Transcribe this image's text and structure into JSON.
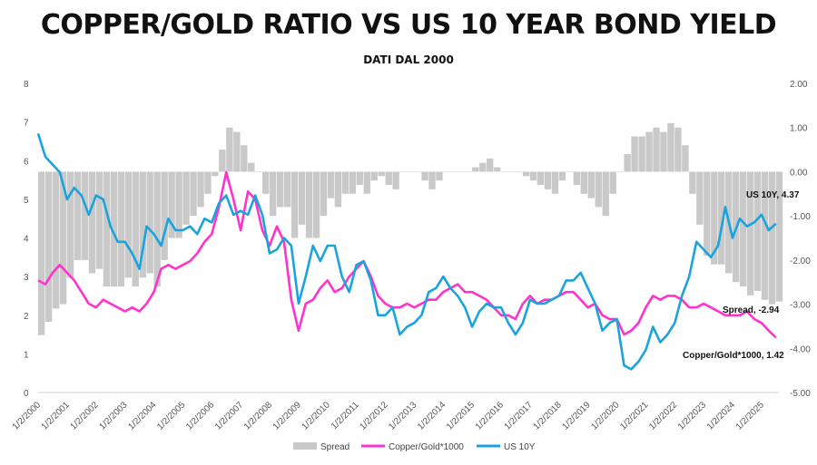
{
  "chart_data": {
    "type": "line",
    "title": "COPPER/GOLD RATIO VS US 10 YEAR BOND YIELD",
    "subtitle": "DATI DAL 2000",
    "x_tick_labels": [
      "1/2/2000",
      "1/2/2001",
      "1/2/2002",
      "1/2/2003",
      "1/2/2004",
      "1/2/2005",
      "1/2/2006",
      "1/2/2007",
      "1/2/2008",
      "1/2/2009",
      "1/2/2010",
      "1/2/2011",
      "1/2/2012",
      "1/2/2013",
      "1/2/2014",
      "1/2/2015",
      "1/2/2016",
      "1/2/2017",
      "1/2/2018",
      "1/2/2019",
      "1/2/2020",
      "1/2/2021",
      "1/2/2022",
      "1/2/2023",
      "1/2/2024",
      "1/2/2025"
    ],
    "y_left": {
      "min": 0,
      "max": 8,
      "ticks": [
        "0",
        "1",
        "2",
        "3",
        "4",
        "5",
        "6",
        "7",
        "8"
      ]
    },
    "y_right": {
      "min": -5,
      "max": 2,
      "ticks": [
        "2.00",
        "1.00",
        "0.00",
        "-1.00",
        "-2.00",
        "-3.00",
        "-4.00",
        "-5.00"
      ]
    },
    "grid": false,
    "legend_position": "bottom",
    "colors": {
      "spread": "#c9c9c9",
      "copper_gold": "#ff33cc",
      "us10y": "#1aa3dc"
    },
    "series": [
      {
        "name": "Spread",
        "axis": "right",
        "style": "bar",
        "x": [
          2000.0,
          2000.25,
          2000.5,
          2000.75,
          2001.0,
          2001.25,
          2001.5,
          2001.75,
          2002.0,
          2002.25,
          2002.5,
          2002.75,
          2003.0,
          2003.25,
          2003.5,
          2003.75,
          2004.0,
          2004.25,
          2004.5,
          2004.75,
          2005.0,
          2005.25,
          2005.5,
          2005.75,
          2006.0,
          2006.25,
          2006.5,
          2006.75,
          2007.0,
          2007.25,
          2007.5,
          2007.75,
          2008.0,
          2008.25,
          2008.5,
          2008.75,
          2009.0,
          2009.25,
          2009.5,
          2009.75,
          2010.0,
          2010.25,
          2010.5,
          2010.75,
          2011.0,
          2011.25,
          2011.5,
          2011.75,
          2012.0,
          2012.25,
          2012.5,
          2012.75,
          2013.0,
          2013.25,
          2013.5,
          2013.75,
          2014.0,
          2014.25,
          2014.5,
          2014.75,
          2015.0,
          2015.25,
          2015.5,
          2015.75,
          2016.0,
          2016.25,
          2016.5,
          2016.75,
          2017.0,
          2017.25,
          2017.5,
          2017.75,
          2018.0,
          2018.25,
          2018.5,
          2018.75,
          2019.0,
          2019.25,
          2019.5,
          2019.75,
          2020.0,
          2020.25,
          2020.5,
          2020.75,
          2021.0,
          2021.25,
          2021.5,
          2021.75,
          2022.0,
          2022.25,
          2022.5,
          2022.75,
          2023.0,
          2023.25,
          2023.5,
          2023.75,
          2024.0,
          2024.25,
          2024.5,
          2024.75,
          2025.0,
          2025.25,
          2025.5
        ],
        "values": [
          -3.7,
          -3.4,
          -3.1,
          -3.0,
          -2.4,
          -2.0,
          -2.0,
          -2.3,
          -2.2,
          -2.6,
          -2.6,
          -2.6,
          -2.4,
          -2.6,
          -2.4,
          -2.3,
          -2.6,
          -2.0,
          -1.5,
          -1.5,
          -1.2,
          -1.0,
          -0.8,
          -0.5,
          -0.1,
          0.5,
          1.0,
          0.9,
          0.6,
          0.2,
          0.0,
          -0.5,
          -1.0,
          -0.8,
          -0.8,
          -1.5,
          -1.2,
          -1.5,
          -1.5,
          -1.0,
          -0.6,
          -0.8,
          -0.5,
          -0.5,
          -0.3,
          -0.5,
          -0.2,
          -0.1,
          -0.3,
          -0.4,
          0.0,
          0.0,
          0.0,
          -0.2,
          -0.4,
          -0.2,
          0.0,
          0.0,
          0.0,
          0.0,
          0.1,
          0.2,
          0.3,
          0.1,
          0.0,
          0.0,
          0.0,
          -0.1,
          -0.2,
          -0.3,
          -0.4,
          -0.5,
          -0.2,
          0.0,
          -0.3,
          -0.5,
          -0.6,
          -0.8,
          -1.0,
          -0.5,
          0.0,
          0.4,
          0.8,
          0.8,
          0.9,
          1.0,
          0.9,
          1.1,
          1.0,
          0.6,
          -0.5,
          -1.2,
          -1.9,
          -2.1,
          -2.1,
          -2.3,
          -2.5,
          -2.6,
          -2.8,
          -2.7,
          -2.9,
          -3.0,
          -2.94
        ]
      },
      {
        "name": "Copper/Gold*1000",
        "axis": "left",
        "x": [
          2000.0,
          2000.25,
          2000.5,
          2000.75,
          2001.0,
          2001.25,
          2001.5,
          2001.75,
          2002.0,
          2002.25,
          2002.5,
          2002.75,
          2003.0,
          2003.25,
          2003.5,
          2003.75,
          2004.0,
          2004.25,
          2004.5,
          2004.75,
          2005.0,
          2005.25,
          2005.5,
          2005.75,
          2006.0,
          2006.25,
          2006.5,
          2006.75,
          2007.0,
          2007.25,
          2007.5,
          2007.75,
          2008.0,
          2008.25,
          2008.5,
          2008.75,
          2009.0,
          2009.25,
          2009.5,
          2009.75,
          2010.0,
          2010.25,
          2010.5,
          2010.75,
          2011.0,
          2011.25,
          2011.5,
          2011.75,
          2012.0,
          2012.25,
          2012.5,
          2012.75,
          2013.0,
          2013.25,
          2013.5,
          2013.75,
          2014.0,
          2014.25,
          2014.5,
          2014.75,
          2015.0,
          2015.25,
          2015.5,
          2015.75,
          2016.0,
          2016.25,
          2016.5,
          2016.75,
          2017.0,
          2017.25,
          2017.5,
          2017.75,
          2018.0,
          2018.25,
          2018.5,
          2018.75,
          2019.0,
          2019.25,
          2019.5,
          2019.75,
          2020.0,
          2020.25,
          2020.5,
          2020.75,
          2021.0,
          2021.25,
          2021.5,
          2021.75,
          2022.0,
          2022.25,
          2022.5,
          2022.75,
          2023.0,
          2023.25,
          2023.5,
          2023.75,
          2024.0,
          2024.25,
          2024.5,
          2024.75,
          2025.0,
          2025.25,
          2025.5
        ],
        "values": [
          2.9,
          2.8,
          3.1,
          3.3,
          3.1,
          2.9,
          2.6,
          2.3,
          2.2,
          2.4,
          2.3,
          2.2,
          2.1,
          2.2,
          2.1,
          2.3,
          2.6,
          3.2,
          3.3,
          3.2,
          3.3,
          3.4,
          3.6,
          3.9,
          4.1,
          4.8,
          5.7,
          5.0,
          4.2,
          5.2,
          5.0,
          4.2,
          3.8,
          4.3,
          3.9,
          2.4,
          1.6,
          2.3,
          2.4,
          2.7,
          2.9,
          2.6,
          2.7,
          3.0,
          3.2,
          3.4,
          3.0,
          2.5,
          2.3,
          2.2,
          2.2,
          2.3,
          2.2,
          2.3,
          2.4,
          2.4,
          2.6,
          2.7,
          2.8,
          2.6,
          2.6,
          2.5,
          2.4,
          2.2,
          2.0,
          2.0,
          1.9,
          2.3,
          2.5,
          2.3,
          2.4,
          2.4,
          2.5,
          2.6,
          2.6,
          2.4,
          2.2,
          2.3,
          2.0,
          1.9,
          1.9,
          1.5,
          1.6,
          1.8,
          2.2,
          2.5,
          2.4,
          2.5,
          2.5,
          2.4,
          2.2,
          2.2,
          2.3,
          2.2,
          2.1,
          2.0,
          2.0,
          2.0,
          2.1,
          1.9,
          1.8,
          1.6,
          1.42
        ]
      },
      {
        "name": "US 10Y",
        "axis": "left",
        "x": [
          2000.0,
          2000.25,
          2000.5,
          2000.75,
          2001.0,
          2001.25,
          2001.5,
          2001.75,
          2002.0,
          2002.25,
          2002.5,
          2002.75,
          2003.0,
          2003.25,
          2003.5,
          2003.75,
          2004.0,
          2004.25,
          2004.5,
          2004.75,
          2005.0,
          2005.25,
          2005.5,
          2005.75,
          2006.0,
          2006.25,
          2006.5,
          2006.75,
          2007.0,
          2007.25,
          2007.5,
          2007.75,
          2008.0,
          2008.25,
          2008.5,
          2008.75,
          2009.0,
          2009.25,
          2009.5,
          2009.75,
          2010.0,
          2010.25,
          2010.5,
          2010.75,
          2011.0,
          2011.25,
          2011.5,
          2011.75,
          2012.0,
          2012.25,
          2012.5,
          2012.75,
          2013.0,
          2013.25,
          2013.5,
          2013.75,
          2014.0,
          2014.25,
          2014.5,
          2014.75,
          2015.0,
          2015.25,
          2015.5,
          2015.75,
          2016.0,
          2016.25,
          2016.5,
          2016.75,
          2017.0,
          2017.25,
          2017.5,
          2017.75,
          2018.0,
          2018.25,
          2018.5,
          2018.75,
          2019.0,
          2019.25,
          2019.5,
          2019.75,
          2020.0,
          2020.25,
          2020.5,
          2020.75,
          2021.0,
          2021.25,
          2021.5,
          2021.75,
          2022.0,
          2022.25,
          2022.5,
          2022.75,
          2023.0,
          2023.25,
          2023.5,
          2023.75,
          2024.0,
          2024.25,
          2024.5,
          2024.75,
          2025.0,
          2025.25,
          2025.5
        ],
        "values": [
          6.7,
          6.1,
          5.9,
          5.7,
          5.0,
          5.3,
          5.1,
          4.6,
          5.1,
          5.0,
          4.3,
          3.9,
          3.9,
          3.6,
          3.2,
          4.3,
          4.1,
          3.8,
          4.5,
          4.2,
          4.2,
          4.3,
          4.1,
          4.5,
          4.4,
          4.9,
          5.1,
          4.6,
          4.7,
          4.6,
          5.1,
          4.6,
          3.6,
          3.7,
          4.0,
          3.8,
          2.3,
          3.0,
          3.8,
          3.4,
          3.8,
          3.8,
          3.0,
          2.6,
          3.3,
          3.4,
          2.9,
          2.0,
          2.0,
          2.2,
          1.5,
          1.7,
          1.8,
          2.0,
          2.6,
          2.7,
          3.0,
          2.7,
          2.5,
          2.2,
          1.7,
          2.1,
          2.3,
          2.2,
          2.2,
          1.8,
          1.5,
          1.8,
          2.4,
          2.3,
          2.3,
          2.4,
          2.5,
          2.9,
          2.9,
          3.1,
          2.7,
          2.3,
          1.6,
          1.8,
          1.9,
          0.7,
          0.6,
          0.8,
          1.1,
          1.7,
          1.3,
          1.5,
          1.8,
          2.5,
          3.0,
          3.9,
          3.7,
          3.5,
          3.8,
          4.8,
          4.0,
          4.5,
          4.3,
          4.4,
          4.6,
          4.2,
          4.37
        ]
      }
    ],
    "annotations": [
      {
        "text": "US 10Y, 4.37",
        "x": 2025.5,
        "y": 4.37,
        "axis": "left"
      },
      {
        "text": "Spread, -2.94",
        "x": 2025.5,
        "y": -2.94,
        "axis": "right"
      },
      {
        "text": "Copper/Gold*1000, 1.42",
        "x": 2025.5,
        "y": 1.42,
        "axis": "left"
      }
    ]
  }
}
